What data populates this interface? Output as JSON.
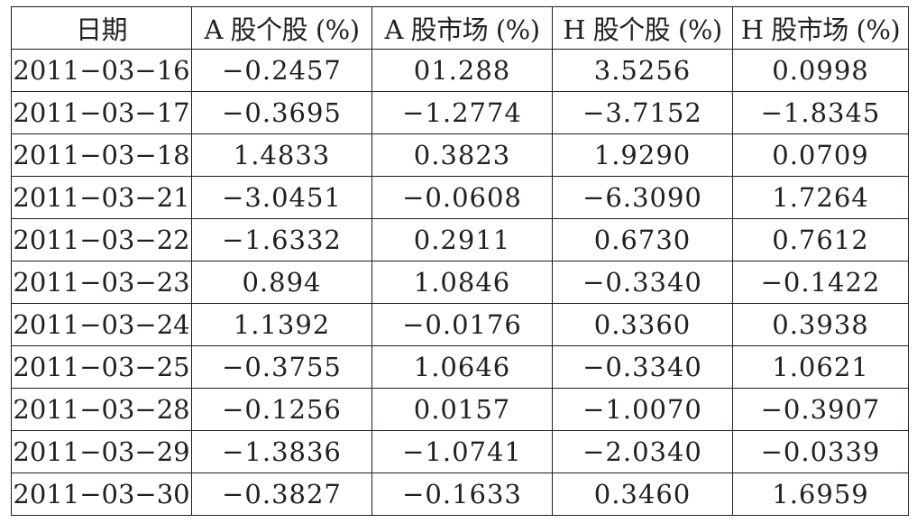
{
  "table": {
    "headers": [
      "日期",
      "A 股个股 (%)",
      "A 股市场 (%)",
      "H 股个股 (%)",
      "H 股市场 (%)"
    ],
    "rows": [
      [
        "2011−03−16",
        "−0.2457",
        "01.288",
        "3.5256",
        "0.0998"
      ],
      [
        "2011−03−17",
        "−0.3695",
        "−1.2774",
        "−3.7152",
        "−1.8345"
      ],
      [
        "2011−03−18",
        "1.4833",
        "0.3823",
        "1.9290",
        "0.0709"
      ],
      [
        "2011−03−21",
        "−3.0451",
        "−0.0608",
        "−6.3090",
        "1.7264"
      ],
      [
        "2011−03−22",
        "−1.6332",
        "0.2911",
        "0.6730",
        "0.7612"
      ],
      [
        "2011−03−23",
        "0.894",
        "1.0846",
        "−0.3340",
        "−0.1422"
      ],
      [
        "2011−03−24",
        "1.1392",
        "−0.0176",
        "0.3360",
        "0.3938"
      ],
      [
        "2011−03−25",
        "−0.3755",
        "1.0646",
        "−0.3340",
        "1.0621"
      ],
      [
        "2011−03−28",
        "−0.1256",
        "0.0157",
        "−1.0070",
        "−0.3907"
      ],
      [
        "2011−03−29",
        "−1.3836",
        "−1.0741",
        "−2.0340",
        "−0.0339"
      ],
      [
        "2011−03−30",
        "−0.3827",
        "−0.1633",
        "0.3460",
        "1.6959"
      ]
    ]
  }
}
